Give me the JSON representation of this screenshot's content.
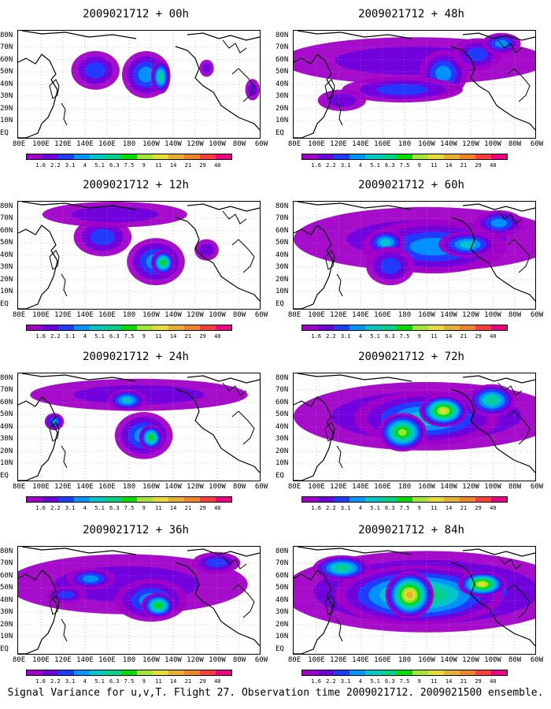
{
  "panels": [
    {
      "title": "2009021712 + 00h"
    },
    {
      "title": "2009021712 + 48h"
    },
    {
      "title": "2009021712 + 12h"
    },
    {
      "title": "2009021712 + 60h"
    },
    {
      "title": "2009021712 + 24h"
    },
    {
      "title": "2009021712 + 72h"
    },
    {
      "title": "2009021712 + 36h"
    },
    {
      "title": "2009021712 + 84h"
    }
  ],
  "lat_labels": [
    "80N",
    "70N",
    "60N",
    "50N",
    "40N",
    "30N",
    "20N",
    "10N",
    "EQ"
  ],
  "lon_labels": [
    "80E",
    "100E",
    "120E",
    "140E",
    "160E",
    "180",
    "160W",
    "140W",
    "120W",
    "100W",
    "80W",
    "60W"
  ],
  "colorbar": {
    "labels": [
      "1.6",
      "2.2",
      "3.1",
      "4",
      "5.1",
      "6.3",
      "7.5",
      "9",
      "11",
      "14",
      "21",
      "29",
      "40"
    ],
    "colors": [
      "#a000c8",
      "#6e00dc",
      "#1e3cff",
      "#0096ff",
      "#00c8c8",
      "#00d28c",
      "#00dc00",
      "#a0e632",
      "#e6dc32",
      "#e6af2d",
      "#f08228",
      "#fa3c3c",
      "#f00082"
    ]
  },
  "footer": "Signal Variance for u,v,T. Flight 27. Observation time 2009021712. 2009021500 ensemble."
}
